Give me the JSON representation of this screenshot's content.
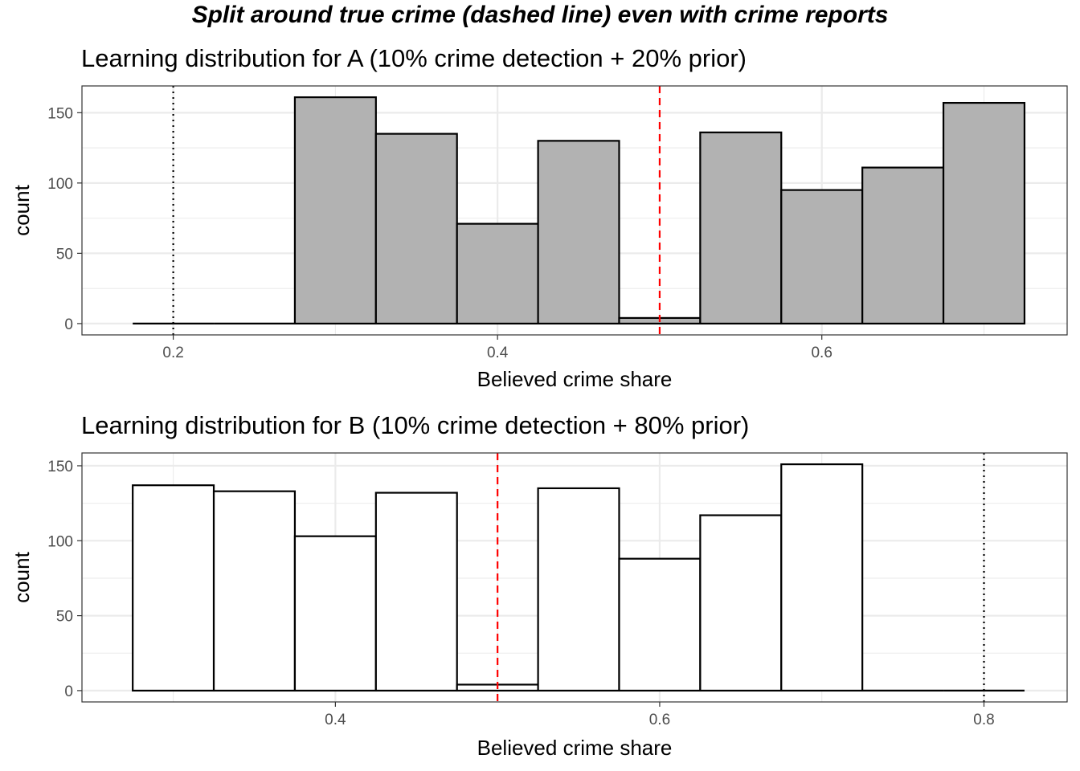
{
  "figure_title": "Split around true crime (dashed line) even with crime reports",
  "chart_data": [
    {
      "type": "bar",
      "title": "Learning distribution for A (10% crime detection + 20% prior)",
      "xlabel": "Believed crime share",
      "ylabel": "count",
      "bin_width": 0.05,
      "bins": [
        {
          "center": 0.2,
          "count": 0
        },
        {
          "center": 0.25,
          "count": 0
        },
        {
          "center": 0.3,
          "count": 161
        },
        {
          "center": 0.35,
          "count": 135
        },
        {
          "center": 0.4,
          "count": 71
        },
        {
          "center": 0.45,
          "count": 130
        },
        {
          "center": 0.5,
          "count": 4
        },
        {
          "center": 0.55,
          "count": 136
        },
        {
          "center": 0.6,
          "count": 95
        },
        {
          "center": 0.65,
          "count": 111
        },
        {
          "center": 0.7,
          "count": 157
        }
      ],
      "xlim": [
        0.1437,
        0.7513
      ],
      "ylim": [
        -8.05,
        169.05
      ],
      "x_ticks": [
        0.2,
        0.4,
        0.6
      ],
      "x_tick_labels": [
        "0.2",
        "0.4",
        "0.6"
      ],
      "y_ticks": [
        0,
        50,
        100,
        150
      ],
      "y_tick_labels": [
        "0",
        "50",
        "100",
        "150"
      ],
      "fill": "#b2b2b2",
      "true_crime_dashed": 0.5,
      "prior_dotted": 0.2,
      "dashed_color": "#ff0000",
      "grid": true,
      "legend": "none"
    },
    {
      "type": "bar",
      "title": "Learning distribution for B (10% crime detection + 80% prior)",
      "xlabel": "Believed crime share",
      "ylabel": "count",
      "bin_width": 0.05,
      "bins": [
        {
          "center": 0.3,
          "count": 137
        },
        {
          "center": 0.35,
          "count": 133
        },
        {
          "center": 0.4,
          "count": 103
        },
        {
          "center": 0.45,
          "count": 132
        },
        {
          "center": 0.5,
          "count": 4
        },
        {
          "center": 0.55,
          "count": 135
        },
        {
          "center": 0.6,
          "count": 88
        },
        {
          "center": 0.65,
          "count": 117
        },
        {
          "center": 0.7,
          "count": 151
        },
        {
          "center": 0.75,
          "count": 0
        },
        {
          "center": 0.8,
          "count": 0
        }
      ],
      "xlim": [
        0.2437,
        0.8513
      ],
      "ylim": [
        -7.55,
        158.55
      ],
      "x_ticks": [
        0.4,
        0.6,
        0.8
      ],
      "x_tick_labels": [
        "0.4",
        "0.6",
        "0.8"
      ],
      "y_ticks": [
        0,
        50,
        100,
        150
      ],
      "y_tick_labels": [
        "0",
        "50",
        "100",
        "150"
      ],
      "fill": "#ffffff",
      "true_crime_dashed": 0.5,
      "prior_dotted": 0.8,
      "dashed_color": "#ff0000",
      "grid": true,
      "legend": "none"
    }
  ]
}
